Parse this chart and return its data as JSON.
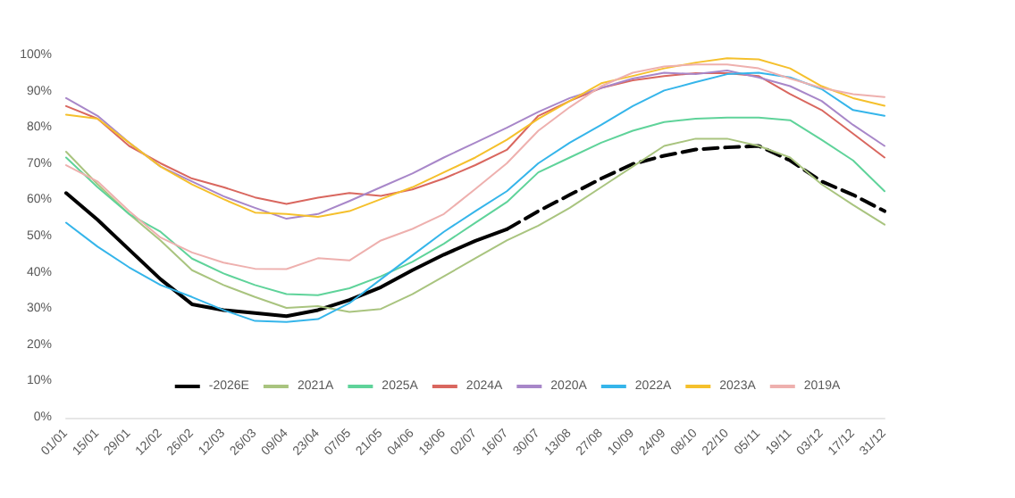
{
  "chart_data": {
    "type": "line",
    "categories": [
      "01/01",
      "15/01",
      "29/01",
      "12/02",
      "26/02",
      "12/03",
      "26/03",
      "09/04",
      "23/04",
      "07/05",
      "21/05",
      "04/06",
      "18/06",
      "02/07",
      "16/07",
      "30/07",
      "13/08",
      "27/08",
      "10/09",
      "24/09",
      "08/10",
      "22/10",
      "05/11",
      "19/11",
      "03/12",
      "17/12",
      "31/12"
    ],
    "ylim": [
      0,
      100
    ],
    "yticks": [
      {
        "value": 0,
        "label": "0%"
      },
      {
        "value": 10,
        "label": "10%"
      },
      {
        "value": 20,
        "label": "20%"
      },
      {
        "value": 30,
        "label": "30%"
      },
      {
        "value": 40,
        "label": "40%"
      },
      {
        "value": 50,
        "label": "50%"
      },
      {
        "value": 60,
        "label": "60%"
      },
      {
        "value": 70,
        "label": "70%"
      },
      {
        "value": 80,
        "label": "80%"
      },
      {
        "value": 90,
        "label": "90%"
      },
      {
        "value": 100,
        "label": "100%"
      }
    ],
    "grid": false,
    "legend": "bottom",
    "marker": "none",
    "series": [
      {
        "color": "#000000",
        "line_style": "solid",
        "values": [
          62,
          54.6,
          46.4,
          38.2,
          31.3,
          29.7,
          28.9,
          28,
          29.7,
          32.5,
          36,
          40.7,
          45,
          48.8,
          52,
          null,
          null,
          null,
          null,
          null,
          null,
          null,
          null,
          null,
          null,
          null,
          null
        ]
      },
      {
        "name": "-2026E",
        "color": "#000000",
        "line_style": "dashed",
        "values": [
          null,
          null,
          null,
          null,
          null,
          null,
          null,
          null,
          null,
          null,
          null,
          null,
          null,
          null,
          52,
          57,
          61.5,
          66,
          70,
          72.3,
          74,
          74.6,
          75,
          71,
          65.2,
          61.5,
          57
        ]
      },
      {
        "name": "2021A",
        "color": "#a9c47f",
        "line_style": "solid",
        "values": [
          73.4,
          64.4,
          56.2,
          48.9,
          40.7,
          36.6,
          33.3,
          30.3,
          30.8,
          29.2,
          30,
          34.1,
          39,
          44,
          48.9,
          53,
          57.9,
          63.6,
          69.3,
          75,
          77,
          77,
          75,
          71.8,
          64.4,
          58.7,
          53.3
        ]
      },
      {
        "name": "2025A",
        "color": "#5fd39a",
        "line_style": "solid",
        "values": [
          71.8,
          63.6,
          56.2,
          51.3,
          43.9,
          39.8,
          36.6,
          34.1,
          33.8,
          35.7,
          39,
          43,
          48,
          53.8,
          59.5,
          67.7,
          71.8,
          75.9,
          79.2,
          81.6,
          82.5,
          82.8,
          82.8,
          82.1,
          76.7,
          71,
          62.5
        ]
      },
      {
        "name": "2024A",
        "color": "#d9675f",
        "line_style": "solid",
        "values": [
          86,
          82.5,
          75,
          70.2,
          66,
          63.6,
          60.8,
          59,
          60.7,
          62,
          61.2,
          63,
          66,
          69.7,
          73.9,
          83.3,
          87.4,
          91,
          93.1,
          94.3,
          95.1,
          95.1,
          94.3,
          89.3,
          84.9,
          78.4,
          71.8
        ]
      },
      {
        "name": "2020A",
        "color": "#a887c9",
        "line_style": "solid",
        "values": [
          88.2,
          83.3,
          75.9,
          69.3,
          65.2,
          61.1,
          57.9,
          54.9,
          56.2,
          59.8,
          63.6,
          67.4,
          71.8,
          75.9,
          80,
          84.4,
          88.2,
          91,
          93.6,
          95.2,
          94.8,
          95.8,
          93.9,
          91.5,
          87.4,
          80.8,
          75
        ]
      },
      {
        "name": "2022A",
        "color": "#35b5ea",
        "line_style": "solid",
        "values": [
          53.8,
          47.2,
          41.5,
          36.6,
          33.3,
          29.7,
          26.7,
          26.4,
          27.2,
          31.6,
          38.2,
          44.8,
          51.3,
          57,
          62.5,
          70.2,
          75.9,
          80.8,
          86,
          90.3,
          92.6,
          94.8,
          95.2,
          93.9,
          90.7,
          84.9,
          83.3
        ]
      },
      {
        "name": "2023A",
        "color": "#f5c02c",
        "line_style": "solid",
        "values": [
          83.6,
          82.5,
          75.9,
          69.3,
          64.4,
          60.3,
          56.6,
          56.2,
          55.4,
          57,
          60.3,
          63.6,
          67.7,
          71.8,
          76.7,
          82.5,
          87.4,
          92.3,
          94.3,
          96.4,
          98,
          99.2,
          98.9,
          96.4,
          91.5,
          88.2,
          86.1
        ]
      },
      {
        "name": "2019A",
        "color": "#eeb0ae",
        "line_style": "solid",
        "values": [
          69.7,
          65.2,
          57,
          49.7,
          45.6,
          42.8,
          41.1,
          41,
          44,
          43.4,
          48.9,
          52.1,
          56.2,
          63.1,
          70.2,
          79.2,
          85.7,
          91.5,
          95.2,
          96.9,
          97.5,
          97.5,
          96.4,
          93.6,
          91,
          89.3,
          88.5
        ]
      }
    ]
  }
}
